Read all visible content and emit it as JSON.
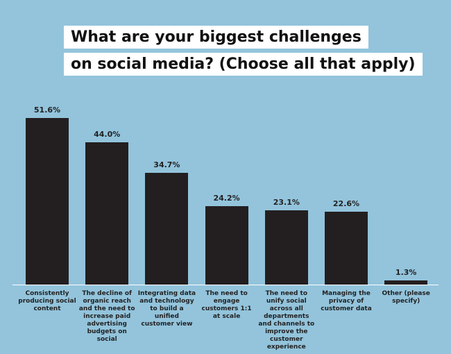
{
  "chart_data": {
    "type": "bar",
    "title": "What are your biggest challenges\non social media? (Choose all that apply)",
    "categories": [
      "Consistently producing social content",
      "The decline of organic reach and the need to increase paid advertising budgets on social",
      "Integrating data and technology to build a unified customer view",
      "The need to engage customers 1:1 at scale",
      "The need to unify social across all departments and channels to improve the customer experience",
      "Managing the privacy of customer data",
      "Other (please specify)"
    ],
    "values": [
      51.6,
      44.0,
      34.7,
      24.2,
      23.1,
      22.6,
      1.3
    ],
    "value_labels": [
      "51.6%",
      "44.0%",
      "34.7%",
      "24.2%",
      "23.1%",
      "22.6%",
      "1.3%"
    ],
    "color": "#231f20"
  }
}
